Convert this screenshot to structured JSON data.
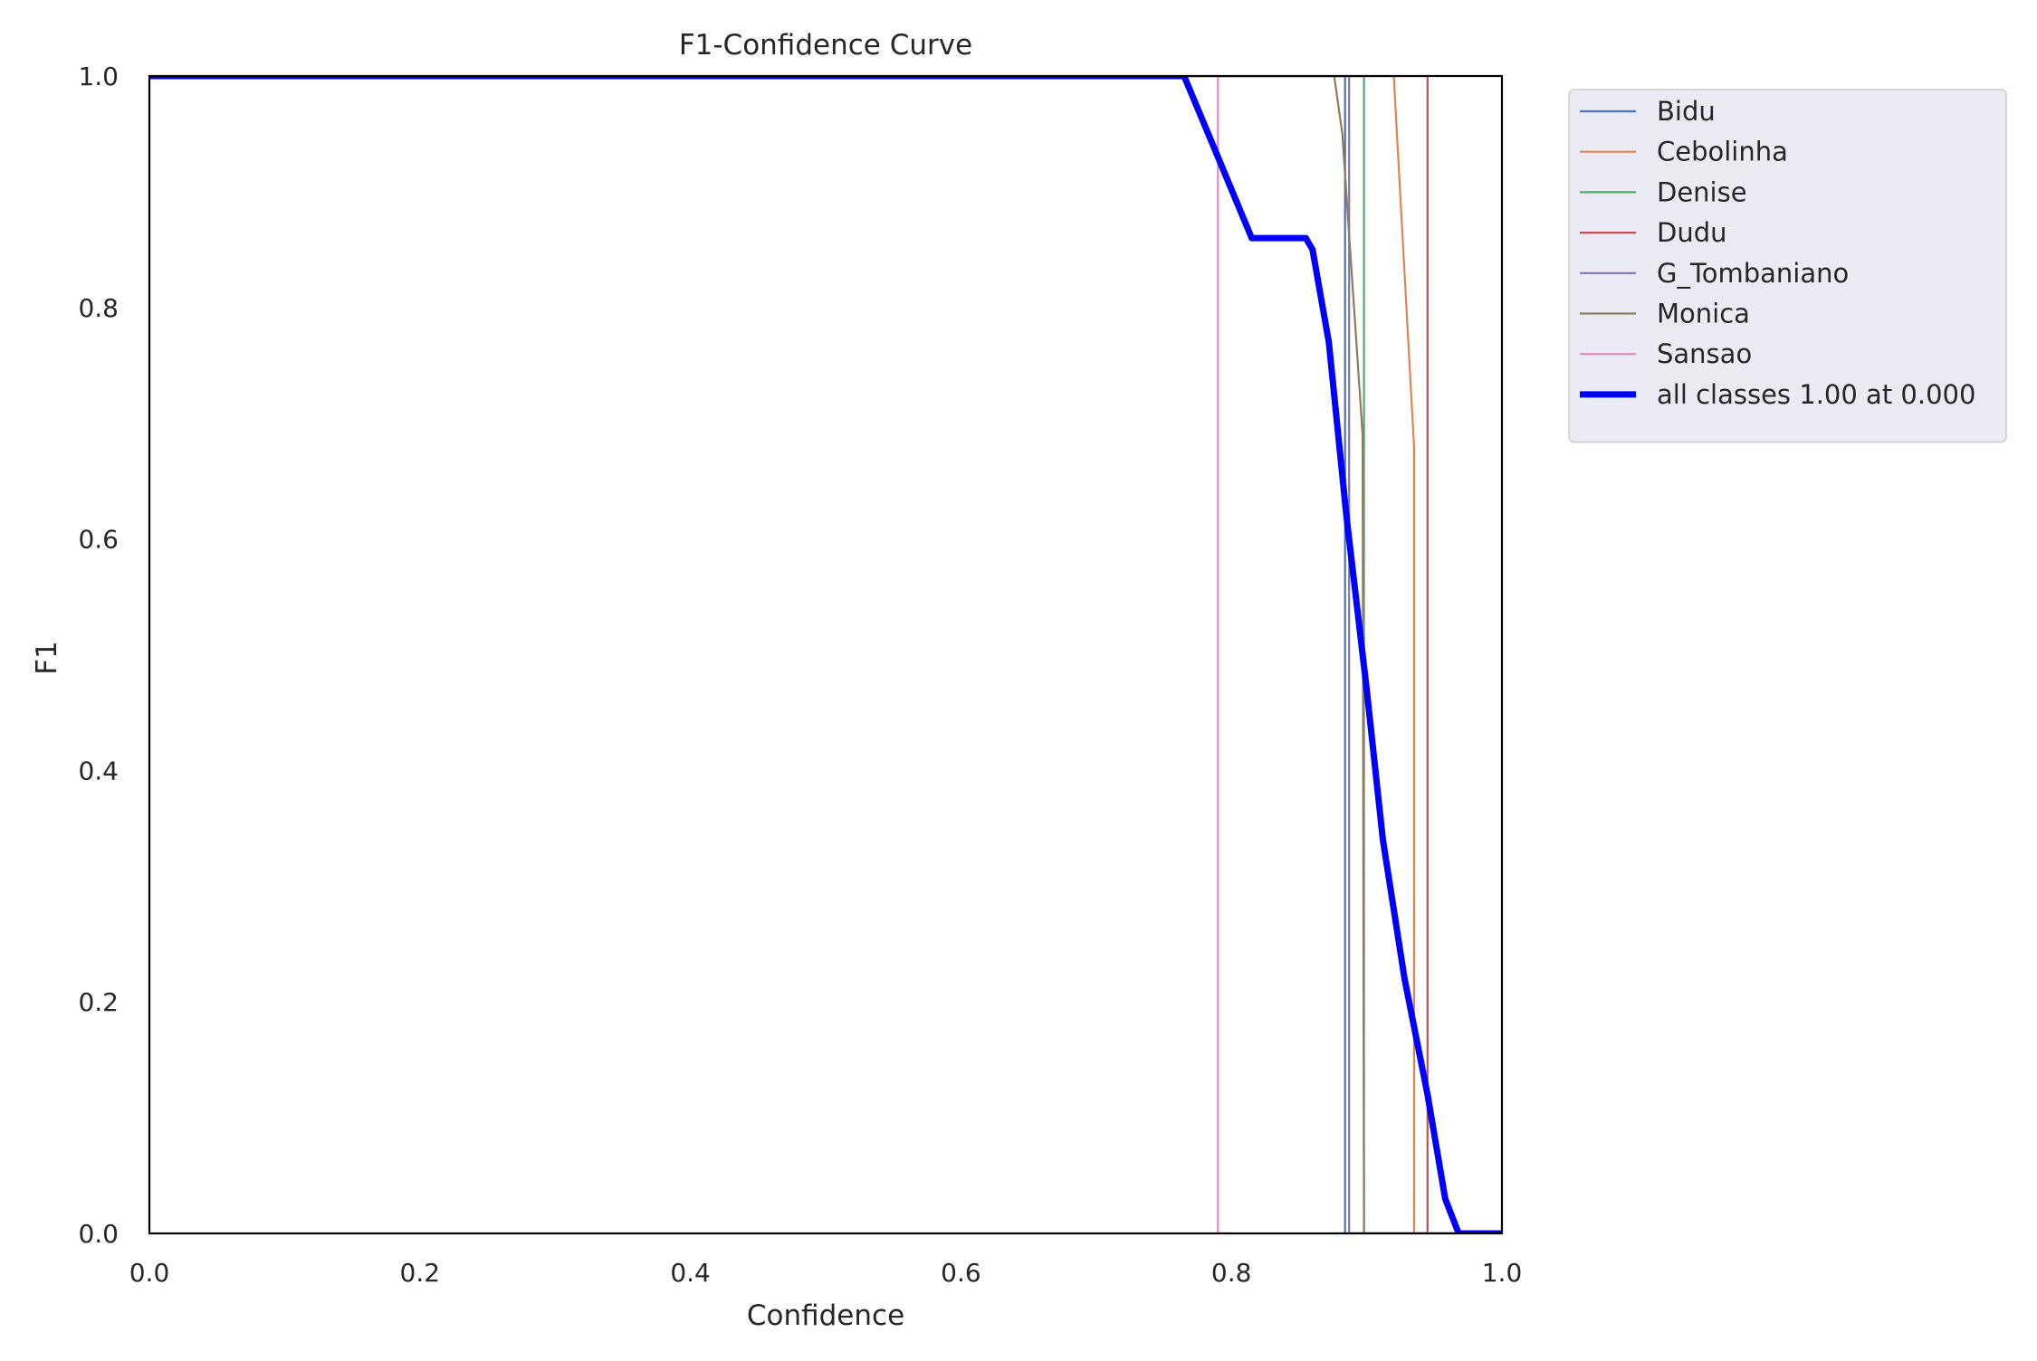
{
  "chart_data": {
    "type": "line",
    "title": "F1-Confidence Curve",
    "xlabel": "Confidence",
    "ylabel": "F1",
    "xlim": [
      0,
      1
    ],
    "ylim": [
      0,
      1
    ],
    "xticks": [
      "0.0",
      "0.2",
      "0.4",
      "0.6",
      "0.8",
      "1.0"
    ],
    "yticks": [
      "0.0",
      "0.2",
      "0.4",
      "0.6",
      "0.8",
      "1.0"
    ],
    "grid": false,
    "legend_position": "outside-top-right",
    "series": [
      {
        "name": "Bidu",
        "color": "#4c72b0",
        "x": [
          0,
          0.884,
          0.884,
          0.886,
          0.886,
          1.0
        ],
        "y": [
          1,
          1,
          0,
          0,
          0,
          0
        ],
        "emphasis": false
      },
      {
        "name": "Cebolinha",
        "color": "#dd8452",
        "x": [
          0,
          0.92,
          0.935,
          0.935,
          1.0
        ],
        "y": [
          1,
          1,
          0.68,
          0,
          0
        ],
        "emphasis": false
      },
      {
        "name": "Denise",
        "color": "#55a868",
        "x": [
          0,
          0.898,
          0.898,
          1.0
        ],
        "y": [
          1,
          1,
          0,
          0
        ],
        "emphasis": false
      },
      {
        "name": "Dudu",
        "color": "#c44e52",
        "x": [
          0,
          0.945,
          0.945,
          1.0
        ],
        "y": [
          1,
          1,
          0,
          0
        ],
        "emphasis": false
      },
      {
        "name": "G_Tombaniano",
        "color": "#8172b3",
        "x": [
          0,
          0.887,
          0.887,
          1.0
        ],
        "y": [
          1,
          1,
          0,
          0
        ],
        "emphasis": false
      },
      {
        "name": "Monica",
        "color": "#937860",
        "x": [
          0,
          0.876,
          0.882,
          0.897,
          0.898,
          1.0
        ],
        "y": [
          1,
          1,
          0.95,
          0.69,
          0,
          0
        ],
        "emphasis": false
      },
      {
        "name": "Sansao",
        "color": "#da8bc3",
        "x": [
          0,
          0.79,
          0.79,
          1.0
        ],
        "y": [
          1,
          1,
          0,
          0
        ],
        "emphasis": false
      },
      {
        "name": "all classes 1.00 at 0.000",
        "color": "#0000ff",
        "x": [
          0,
          0.765,
          0.79,
          0.815,
          0.855,
          0.86,
          0.872,
          0.885,
          0.9,
          0.912,
          0.92,
          0.928,
          0.945,
          0.958,
          0.968,
          1.0
        ],
        "y": [
          1,
          1,
          0.93,
          0.86,
          0.86,
          0.85,
          0.77,
          0.62,
          0.47,
          0.34,
          0.28,
          0.22,
          0.12,
          0.03,
          0,
          0
        ],
        "emphasis": true
      }
    ]
  }
}
